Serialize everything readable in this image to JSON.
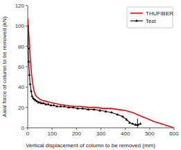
{
  "chart_data": {
    "type": "line",
    "title": "",
    "xlabel": "Vertical displacement of column to be removed (mm)",
    "ylabel": "Axial force of column to be removed (kN)",
    "xlim": [
      0,
      600
    ],
    "ylim": [
      0,
      120
    ],
    "xticks": [
      0,
      100,
      200,
      300,
      400,
      500,
      600
    ],
    "yticks": [
      0,
      20,
      40,
      60,
      80,
      100,
      120
    ],
    "grid": false,
    "legend": "upper right",
    "series": [
      {
        "name": "THUFIBER",
        "color": "#ff0000",
        "line_style": "solid",
        "x": [
          0,
          1,
          2,
          4,
          6,
          8,
          10,
          13,
          16,
          20,
          25,
          30,
          35,
          40,
          50,
          60,
          75,
          90,
          110,
          130,
          160,
          190,
          220,
          250,
          280,
          310,
          340,
          370,
          400,
          430,
          460,
          490,
          520,
          560,
          600
        ],
        "values": [
          107,
          104,
          101,
          94,
          86,
          78,
          70,
          60,
          52,
          44,
          37,
          33,
          31,
          30,
          28,
          27,
          26,
          25,
          24,
          23,
          22,
          21,
          21,
          20,
          20,
          19,
          19,
          18,
          17,
          15,
          12,
          9,
          6,
          3,
          0
        ]
      },
      {
        "name": "Test",
        "color": "#000000",
        "line_style": "solid",
        "marker": "triangle",
        "x": [
          0,
          2,
          4,
          7,
          10,
          14,
          18,
          22,
          27,
          32,
          38,
          44,
          50,
          57,
          65,
          74,
          84,
          95,
          107,
          120,
          135,
          150,
          168,
          186,
          205,
          225,
          248,
          272,
          296,
          320,
          344,
          368,
          390,
          405,
          418,
          430,
          442,
          452,
          462
        ],
        "values": [
          100,
          78,
          65,
          52,
          43,
          36,
          31,
          29,
          28,
          27,
          26,
          25,
          25,
          24,
          24,
          23,
          23,
          22,
          22,
          21,
          21,
          21,
          20,
          20,
          19,
          19,
          18,
          18,
          17,
          16,
          15,
          13,
          11,
          8,
          5,
          4,
          3,
          3,
          4
        ]
      }
    ],
    "annotation_line": {
      "x": 450,
      "y": [
        0,
        9
      ]
    }
  }
}
